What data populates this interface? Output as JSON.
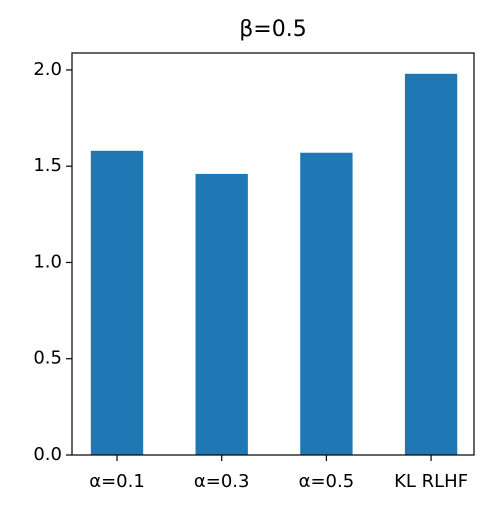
{
  "chart_data": {
    "type": "bar",
    "title": "β=0.5",
    "categories": [
      "α=0.1",
      "α=0.3",
      "α=0.5",
      "KL RLHF"
    ],
    "values": [
      1.58,
      1.46,
      1.57,
      1.98
    ],
    "color": "#1f77b4",
    "ylim": [
      0,
      2.088
    ],
    "yticks": [
      {
        "value": 0,
        "label": "0.0"
      },
      0.5,
      {
        "value": 1,
        "label": "1.0"
      },
      1.5,
      {
        "value": 2,
        "label": "2.0"
      }
    ],
    "grid": false
  }
}
